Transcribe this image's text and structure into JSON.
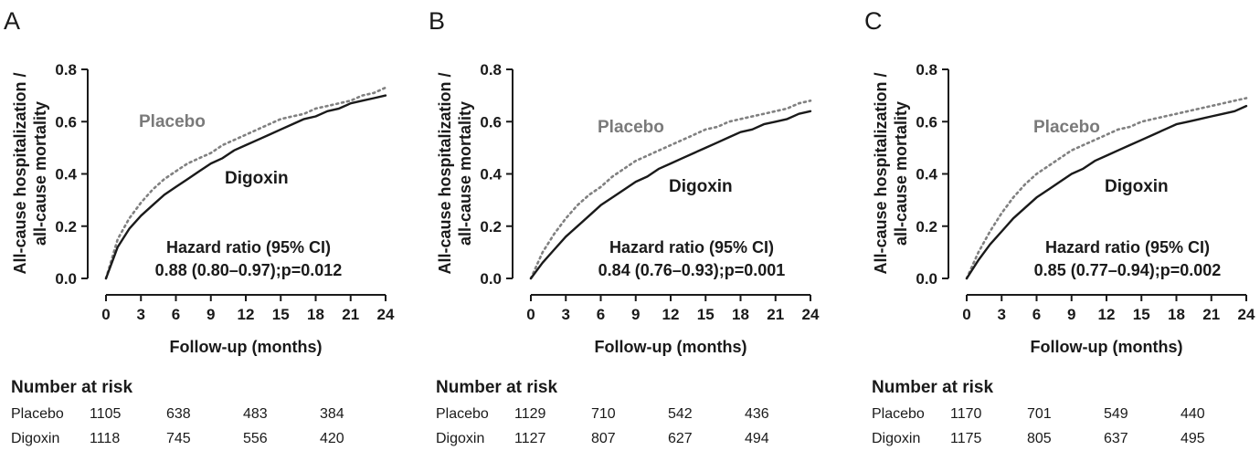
{
  "chart_data": [
    {
      "type": "line",
      "panel_label": "A",
      "ylabel": "All-cause hospitalization / all-cause mortality",
      "xlabel": "Follow-up (months)",
      "xlim": [
        0,
        24
      ],
      "ylim": [
        0,
        0.8
      ],
      "xticks": [
        "0",
        "3",
        "6",
        "9",
        "12",
        "15",
        "18",
        "21",
        "24"
      ],
      "yticks": [
        "0.0",
        "0.2",
        "0.4",
        "0.6",
        "0.8"
      ],
      "grid": false,
      "series": [
        {
          "name": "Placebo",
          "style": "dotted",
          "color": "#808080",
          "x": [
            0,
            1,
            2,
            3,
            4,
            5,
            6,
            7,
            8,
            9,
            10,
            11,
            12,
            13,
            14,
            15,
            16,
            17,
            18,
            19,
            20,
            21,
            22,
            23,
            24
          ],
          "y": [
            0,
            0.15,
            0.23,
            0.29,
            0.34,
            0.38,
            0.41,
            0.44,
            0.46,
            0.48,
            0.51,
            0.53,
            0.55,
            0.57,
            0.59,
            0.61,
            0.62,
            0.63,
            0.65,
            0.66,
            0.67,
            0.68,
            0.7,
            0.71,
            0.73
          ]
        },
        {
          "name": "Digoxin",
          "style": "solid",
          "color": "#1a1a1a",
          "x": [
            0,
            1,
            2,
            3,
            4,
            5,
            6,
            7,
            8,
            9,
            10,
            11,
            12,
            13,
            14,
            15,
            16,
            17,
            18,
            19,
            20,
            21,
            22,
            23,
            24
          ],
          "y": [
            0,
            0.12,
            0.19,
            0.24,
            0.28,
            0.32,
            0.35,
            0.38,
            0.41,
            0.44,
            0.46,
            0.49,
            0.51,
            0.53,
            0.55,
            0.57,
            0.59,
            0.61,
            0.62,
            0.64,
            0.65,
            0.67,
            0.68,
            0.69,
            0.7
          ]
        }
      ],
      "annotations": {
        "placebo_label": "Placebo",
        "digoxin_label": "Digoxin",
        "hr_title": "Hazard ratio (95% CI)",
        "hr_value": "0.88 (0.80–0.97);p=0.012"
      },
      "risk_table": {
        "title": "Number at risk",
        "rows": [
          {
            "label": "Placebo",
            "values": [
              "1105",
              "638",
              "483",
              "384"
            ]
          },
          {
            "label": "Digoxin",
            "values": [
              "1118",
              "745",
              "556",
              "420"
            ]
          }
        ]
      }
    },
    {
      "type": "line",
      "panel_label": "B",
      "ylabel": "All-cause hospitalization / all-cause mortality",
      "xlabel": "Follow-up (months)",
      "xlim": [
        0,
        24
      ],
      "ylim": [
        0,
        0.8
      ],
      "xticks": [
        "0",
        "3",
        "6",
        "9",
        "12",
        "15",
        "18",
        "21",
        "24"
      ],
      "yticks": [
        "0.0",
        "0.2",
        "0.4",
        "0.6",
        "0.8"
      ],
      "grid": false,
      "series": [
        {
          "name": "Placebo",
          "style": "dotted",
          "color": "#808080",
          "x": [
            0,
            1,
            2,
            3,
            4,
            5,
            6,
            7,
            8,
            9,
            10,
            11,
            12,
            13,
            14,
            15,
            16,
            17,
            18,
            19,
            20,
            21,
            22,
            23,
            24
          ],
          "y": [
            0,
            0.1,
            0.17,
            0.23,
            0.28,
            0.32,
            0.35,
            0.39,
            0.42,
            0.45,
            0.47,
            0.49,
            0.51,
            0.53,
            0.55,
            0.57,
            0.58,
            0.6,
            0.61,
            0.62,
            0.63,
            0.64,
            0.65,
            0.67,
            0.68
          ]
        },
        {
          "name": "Digoxin",
          "style": "solid",
          "color": "#1a1a1a",
          "x": [
            0,
            1,
            2,
            3,
            4,
            5,
            6,
            7,
            8,
            9,
            10,
            11,
            12,
            13,
            14,
            15,
            16,
            17,
            18,
            19,
            20,
            21,
            22,
            23,
            24
          ],
          "y": [
            0,
            0.06,
            0.11,
            0.16,
            0.2,
            0.24,
            0.28,
            0.31,
            0.34,
            0.37,
            0.39,
            0.42,
            0.44,
            0.46,
            0.48,
            0.5,
            0.52,
            0.54,
            0.56,
            0.57,
            0.59,
            0.6,
            0.61,
            0.63,
            0.64
          ]
        }
      ],
      "annotations": {
        "placebo_label": "Placebo",
        "digoxin_label": "Digoxin",
        "hr_title": "Hazard ratio (95% CI)",
        "hr_value": "0.84 (0.76–0.93);p=0.001"
      },
      "risk_table": {
        "title": "Number at risk",
        "rows": [
          {
            "label": "Placebo",
            "values": [
              "1129",
              "710",
              "542",
              "436"
            ]
          },
          {
            "label": "Digoxin",
            "values": [
              "1127",
              "807",
              "627",
              "494"
            ]
          }
        ]
      }
    },
    {
      "type": "line",
      "panel_label": "C",
      "ylabel": "All-cause hospitalization / all-cause mortality",
      "xlabel": "Follow-up (months)",
      "xlim": [
        0,
        24
      ],
      "ylim": [
        0,
        0.8
      ],
      "xticks": [
        "0",
        "3",
        "6",
        "9",
        "12",
        "15",
        "18",
        "21",
        "24"
      ],
      "yticks": [
        "0.0",
        "0.2",
        "0.4",
        "0.6",
        "0.8"
      ],
      "grid": false,
      "series": [
        {
          "name": "Placebo",
          "style": "dotted",
          "color": "#808080",
          "x": [
            0,
            1,
            2,
            3,
            4,
            5,
            6,
            7,
            8,
            9,
            10,
            11,
            12,
            13,
            14,
            15,
            16,
            17,
            18,
            19,
            20,
            21,
            22,
            23,
            24
          ],
          "y": [
            0,
            0.1,
            0.18,
            0.25,
            0.31,
            0.36,
            0.4,
            0.43,
            0.46,
            0.49,
            0.51,
            0.53,
            0.55,
            0.57,
            0.58,
            0.6,
            0.61,
            0.62,
            0.63,
            0.64,
            0.65,
            0.66,
            0.67,
            0.68,
            0.69
          ]
        },
        {
          "name": "Digoxin",
          "style": "solid",
          "color": "#1a1a1a",
          "x": [
            0,
            1,
            2,
            3,
            4,
            5,
            6,
            7,
            8,
            9,
            10,
            11,
            12,
            13,
            14,
            15,
            16,
            17,
            18,
            19,
            20,
            21,
            22,
            23,
            24
          ],
          "y": [
            0,
            0.07,
            0.13,
            0.18,
            0.23,
            0.27,
            0.31,
            0.34,
            0.37,
            0.4,
            0.42,
            0.45,
            0.47,
            0.49,
            0.51,
            0.53,
            0.55,
            0.57,
            0.59,
            0.6,
            0.61,
            0.62,
            0.63,
            0.64,
            0.66
          ]
        }
      ],
      "annotations": {
        "placebo_label": "Placebo",
        "digoxin_label": "Digoxin",
        "hr_title": "Hazard ratio (95% CI)",
        "hr_value": "0.85 (0.77–0.94);p=0.002"
      },
      "risk_table": {
        "title": "Number at risk",
        "rows": [
          {
            "label": "Placebo",
            "values": [
              "1170",
              "701",
              "549",
              "440"
            ]
          },
          {
            "label": "Digoxin",
            "values": [
              "1175",
              "805",
              "637",
              "495"
            ]
          }
        ]
      }
    }
  ]
}
